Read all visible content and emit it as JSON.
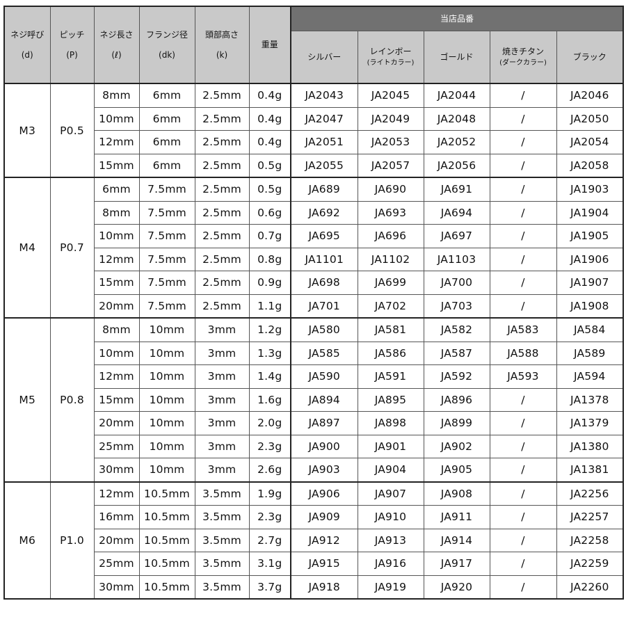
{
  "header": {
    "cols": [
      {
        "label": "ネジ呼び",
        "sym": "(d)"
      },
      {
        "label": "ピッチ",
        "sym": "(P)"
      },
      {
        "label": "ネジ長さ",
        "sym": "(ℓ)"
      },
      {
        "label": "フランジ径",
        "sym": "(dk)"
      },
      {
        "label": "頭部高さ",
        "sym": "(k)"
      },
      {
        "label": "重量",
        "sym": ""
      }
    ],
    "group": "当店品番",
    "colors": [
      {
        "label": "シルバー",
        "sub": ""
      },
      {
        "label": "レインボー",
        "sub": "(ライトカラー)"
      },
      {
        "label": "ゴールド",
        "sub": ""
      },
      {
        "label": "焼きチタン",
        "sub": "(ダークカラー)"
      },
      {
        "label": "ブラック",
        "sub": ""
      }
    ]
  },
  "colors_hex": {
    "group_header": "#717171",
    "header": "#c9c9c9"
  },
  "groups": [
    {
      "size": "M3",
      "pitch": "P0.5",
      "rows": [
        [
          "8mm",
          "6mm",
          "2.5mm",
          "0.4g",
          "JA2043",
          "JA2045",
          "JA2044",
          "/",
          "JA2046"
        ],
        [
          "10mm",
          "6mm",
          "2.5mm",
          "0.4g",
          "JA2047",
          "JA2049",
          "JA2048",
          "/",
          "JA2050"
        ],
        [
          "12mm",
          "6mm",
          "2.5mm",
          "0.4g",
          "JA2051",
          "JA2053",
          "JA2052",
          "/",
          "JA2054"
        ],
        [
          "15mm",
          "6mm",
          "2.5mm",
          "0.5g",
          "JA2055",
          "JA2057",
          "JA2056",
          "/",
          "JA2058"
        ]
      ]
    },
    {
      "size": "M4",
      "pitch": "P0.7",
      "rows": [
        [
          "6mm",
          "7.5mm",
          "2.5mm",
          "0.5g",
          "JA689",
          "JA690",
          "JA691",
          "/",
          "JA1903"
        ],
        [
          "8mm",
          "7.5mm",
          "2.5mm",
          "0.6g",
          "JA692",
          "JA693",
          "JA694",
          "/",
          "JA1904"
        ],
        [
          "10mm",
          "7.5mm",
          "2.5mm",
          "0.7g",
          "JA695",
          "JA696",
          "JA697",
          "/",
          "JA1905"
        ],
        [
          "12mm",
          "7.5mm",
          "2.5mm",
          "0.8g",
          "JA1101",
          "JA1102",
          "JA1103",
          "/",
          "JA1906"
        ],
        [
          "15mm",
          "7.5mm",
          "2.5mm",
          "0.9g",
          "JA698",
          "JA699",
          "JA700",
          "/",
          "JA1907"
        ],
        [
          "20mm",
          "7.5mm",
          "2.5mm",
          "1.1g",
          "JA701",
          "JA702",
          "JA703",
          "/",
          "JA1908"
        ]
      ]
    },
    {
      "size": "M5",
      "pitch": "P0.8",
      "rows": [
        [
          "8mm",
          "10mm",
          "3mm",
          "1.2g",
          "JA580",
          "JA581",
          "JA582",
          "JA583",
          "JA584"
        ],
        [
          "10mm",
          "10mm",
          "3mm",
          "1.3g",
          "JA585",
          "JA586",
          "JA587",
          "JA588",
          "JA589"
        ],
        [
          "12mm",
          "10mm",
          "3mm",
          "1.4g",
          "JA590",
          "JA591",
          "JA592",
          "JA593",
          "JA594"
        ],
        [
          "15mm",
          "10mm",
          "3mm",
          "1.6g",
          "JA894",
          "JA895",
          "JA896",
          "/",
          "JA1378"
        ],
        [
          "20mm",
          "10mm",
          "3mm",
          "2.0g",
          "JA897",
          "JA898",
          "JA899",
          "/",
          "JA1379"
        ],
        [
          "25mm",
          "10mm",
          "3mm",
          "2.3g",
          "JA900",
          "JA901",
          "JA902",
          "/",
          "JA1380"
        ],
        [
          "30mm",
          "10mm",
          "3mm",
          "2.6g",
          "JA903",
          "JA904",
          "JA905",
          "/",
          "JA1381"
        ]
      ]
    },
    {
      "size": "M6",
      "pitch": "P1.0",
      "rows": [
        [
          "12mm",
          "10.5mm",
          "3.5mm",
          "1.9g",
          "JA906",
          "JA907",
          "JA908",
          "/",
          "JA2256"
        ],
        [
          "16mm",
          "10.5mm",
          "3.5mm",
          "2.3g",
          "JA909",
          "JA910",
          "JA911",
          "/",
          "JA2257"
        ],
        [
          "20mm",
          "10.5mm",
          "3.5mm",
          "2.7g",
          "JA912",
          "JA913",
          "JA914",
          "/",
          "JA2258"
        ],
        [
          "25mm",
          "10.5mm",
          "3.5mm",
          "3.1g",
          "JA915",
          "JA916",
          "JA917",
          "/",
          "JA2259"
        ],
        [
          "30mm",
          "10.5mm",
          "3.5mm",
          "3.7g",
          "JA918",
          "JA919",
          "JA920",
          "/",
          "JA2260"
        ]
      ]
    }
  ]
}
